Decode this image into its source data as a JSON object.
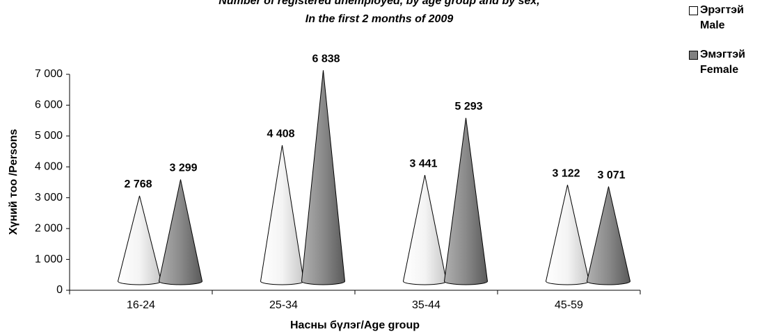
{
  "chart_data": {
    "type": "cone",
    "title": "Number of registered unemployed, by age group and by sex,",
    "subtitle": "In the first 2 months of 2009",
    "x_label": "Насны бүлэг/Age group",
    "y_label": "Хүний тоо /Persons",
    "categories": [
      "16-24",
      "25-34",
      "35-44",
      "45-59"
    ],
    "series": [
      {
        "name": "Эрэгтэй Male",
        "color": "#ffffff",
        "values": [
          2768,
          4408,
          3441,
          3122
        ],
        "value_labels": [
          "2 768",
          "4 408",
          "3 441",
          "3 122"
        ]
      },
      {
        "name": "Эмэгтэй Female",
        "color": "#808080",
        "values": [
          3299,
          6838,
          5293,
          3071
        ],
        "value_labels": [
          "3 299",
          "6 838",
          "5 293",
          "3 071"
        ]
      }
    ],
    "ylim": [
      0,
      7000
    ],
    "yticks": [
      0,
      {
        "value": 1000,
        "label": "1 000"
      },
      {
        "value": 2000,
        "label": "2 000"
      },
      {
        "value": 3000,
        "label": "3 000"
      },
      {
        "value": 4000,
        "label": "4 000"
      },
      {
        "value": 5000,
        "label": "5 000"
      },
      {
        "value": 6000,
        "label": "6 000"
      },
      {
        "value": 7000,
        "label": "7 000"
      }
    ],
    "legend": "right"
  }
}
